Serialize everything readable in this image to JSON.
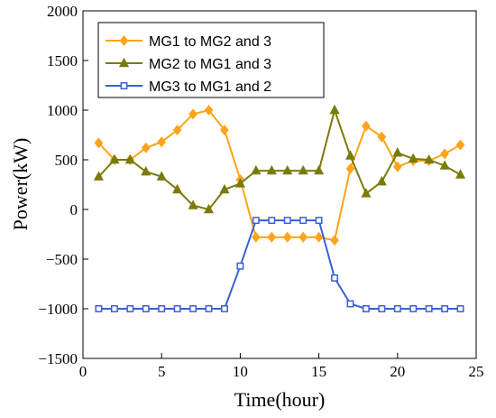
{
  "chart_data": {
    "type": "line",
    "xlabel": "Time(hour)",
    "ylabel": "Power(kW)",
    "xlim": [
      0,
      25
    ],
    "ylim": [
      -1500,
      2000
    ],
    "xticks": [
      0,
      5,
      10,
      15,
      20,
      25
    ],
    "yticks": [
      -1500,
      -1000,
      -500,
      0,
      500,
      1000,
      1500,
      2000
    ],
    "xtick_labels": [
      "0",
      "5",
      "10",
      "15",
      "20",
      "25"
    ],
    "ytick_labels": [
      "−1500",
      "−1000",
      "−500",
      "0",
      "500",
      "1000",
      "1500",
      "2000"
    ],
    "grid": false,
    "legend_position": "top-left",
    "x": [
      1,
      2,
      3,
      4,
      5,
      6,
      7,
      8,
      9,
      10,
      11,
      12,
      13,
      14,
      15,
      16,
      17,
      18,
      19,
      20,
      21,
      22,
      23,
      24
    ],
    "series": [
      {
        "name": "MG1 to MG2 and 3",
        "color": "#ffa31a",
        "marker": "diamond",
        "values": [
          670,
          500,
          500,
          620,
          680,
          800,
          960,
          1000,
          800,
          300,
          -280,
          -280,
          -280,
          -280,
          -280,
          -310,
          410,
          840,
          730,
          430,
          490,
          490,
          560,
          650
        ]
      },
      {
        "name": "MG2 to MG1 and 3",
        "color": "#7b7b0a",
        "marker": "triangle",
        "values": [
          330,
          500,
          500,
          380,
          330,
          200,
          40,
          0,
          200,
          260,
          390,
          390,
          390,
          390,
          390,
          1000,
          540,
          160,
          280,
          570,
          510,
          500,
          440,
          350
        ]
      },
      {
        "name": "MG3 to MG1 and 2",
        "color": "#3a5fd9",
        "marker": "square",
        "values": [
          -1000,
          -1000,
          -1000,
          -1000,
          -1000,
          -1000,
          -1000,
          -1000,
          -1000,
          -570,
          -110,
          -110,
          -110,
          -110,
          -110,
          -690,
          -950,
          -1000,
          -1000,
          -1000,
          -1000,
          -1000,
          -1000,
          -1000
        ]
      }
    ]
  }
}
